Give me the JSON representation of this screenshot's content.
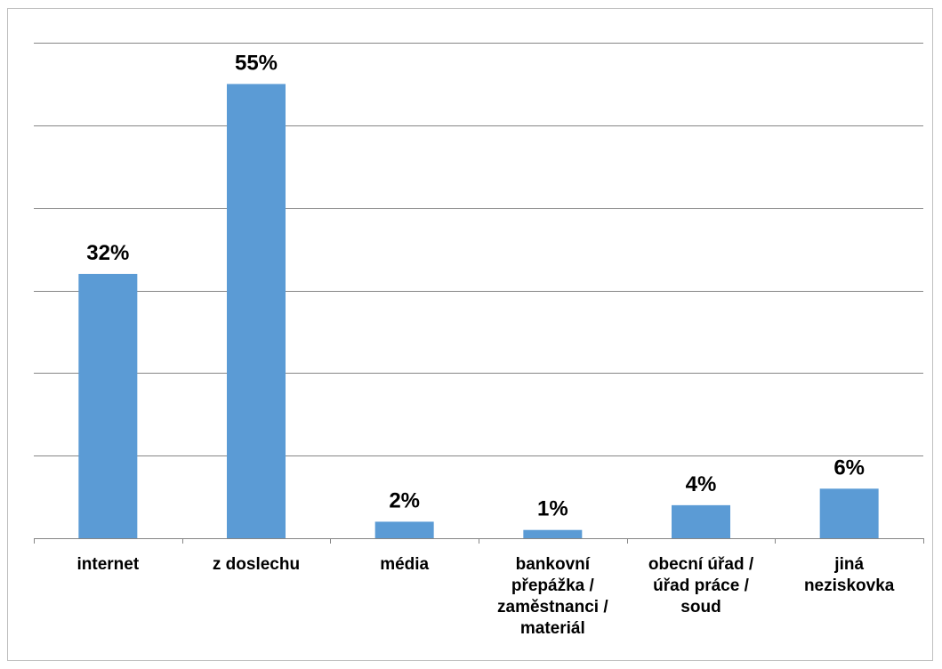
{
  "chart_data": {
    "type": "bar",
    "title": "",
    "xlabel": "",
    "ylabel": "",
    "categories": [
      [
        "internet"
      ],
      [
        "z doslechu"
      ],
      [
        "média"
      ],
      [
        "bankovní",
        "přepážka /",
        "zaměstnanci /",
        "materiál"
      ],
      [
        "obecní úřad /",
        "úřad práce /",
        "soud"
      ],
      [
        "jiná",
        "neziskovka"
      ]
    ],
    "values": [
      32,
      55,
      2,
      1,
      4,
      6
    ],
    "value_labels": [
      "32%",
      "55%",
      "2%",
      "1%",
      "4%",
      "6%"
    ],
    "ylim": [
      0,
      60
    ],
    "y_gridline_step": 10,
    "grid": true,
    "legend": "none",
    "bar_color": "#5b9bd5",
    "gridline_color": "#868686"
  }
}
